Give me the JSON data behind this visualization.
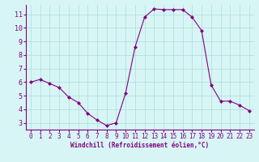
{
  "x": [
    0,
    1,
    2,
    3,
    4,
    5,
    6,
    7,
    8,
    9,
    10,
    11,
    12,
    13,
    14,
    15,
    16,
    17,
    18,
    19,
    20,
    21,
    22,
    23
  ],
  "y": [
    6.0,
    6.2,
    5.9,
    5.6,
    4.9,
    4.5,
    3.7,
    3.2,
    2.8,
    3.0,
    5.2,
    8.6,
    10.8,
    11.4,
    11.35,
    11.35,
    11.35,
    10.8,
    9.8,
    5.8,
    4.6,
    4.6,
    4.3,
    3.9
  ],
  "line_color": "#800080",
  "marker": "D",
  "marker_size": 2,
  "bg_color": "#d8f5f5",
  "grid_color": "#aadddd",
  "xlabel": "Windchill (Refroidissement éolien,°C)",
  "xlabel_color": "#800080",
  "tick_color": "#800080",
  "xlim": [
    -0.5,
    23.5
  ],
  "ylim": [
    2.5,
    11.7
  ],
  "yticks": [
    3,
    4,
    5,
    6,
    7,
    8,
    9,
    10,
    11
  ],
  "xticks": [
    0,
    1,
    2,
    3,
    4,
    5,
    6,
    7,
    8,
    9,
    10,
    11,
    12,
    13,
    14,
    15,
    16,
    17,
    18,
    19,
    20,
    21,
    22,
    23
  ],
  "tick_fontsize": 5.5,
  "xlabel_fontsize": 5.5,
  "ytick_fontsize": 6
}
